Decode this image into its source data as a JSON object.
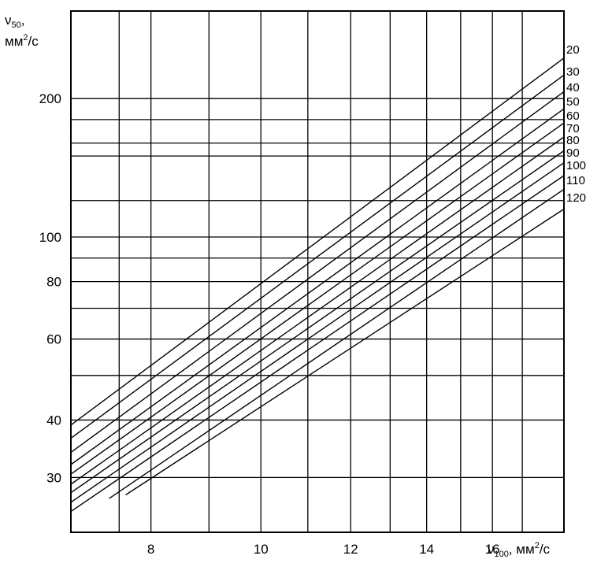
{
  "chart_data": {
    "type": "line",
    "x_scale": "log",
    "y_scale": "log",
    "xlim": [
      6.8,
      18.5
    ],
    "ylim": [
      22.8,
      310
    ],
    "grid": true,
    "x_ticks": [
      8,
      10,
      12,
      14,
      16
    ],
    "y_ticks": [
      30,
      40,
      60,
      80,
      100,
      200
    ],
    "x_gridlines": [
      6.8,
      7.5,
      8,
      9,
      10,
      11,
      12,
      13,
      14,
      15,
      16,
      17,
      18.5
    ],
    "y_gridlines": [
      30,
      40,
      50,
      60,
      70,
      80,
      90,
      100,
      120,
      150,
      160,
      180,
      200,
      310
    ],
    "xlabel": {
      "main": "ν",
      "sub": "100",
      "unit": ", мм",
      "sup": "2",
      "tail": "/с"
    },
    "ylabel": {
      "main": "ν",
      "sub": "50",
      "sep": ",",
      "unit": "мм",
      "sup": "2",
      "tail": "/с"
    },
    "series": [
      {
        "name": "20",
        "points": [
          [
            6.8,
            39.0
          ],
          [
            18.5,
            245.0
          ]
        ]
      },
      {
        "name": "30",
        "points": [
          [
            6.8,
            36.5
          ],
          [
            18.5,
            225.0
          ]
        ]
      },
      {
        "name": "40",
        "points": [
          [
            6.8,
            34.0
          ],
          [
            18.5,
            207.0
          ]
        ]
      },
      {
        "name": "50",
        "points": [
          [
            6.8,
            32.0
          ],
          [
            18.5,
            190.0
          ]
        ]
      },
      {
        "name": "60",
        "points": [
          [
            6.8,
            30.5
          ],
          [
            18.5,
            177.0
          ]
        ]
      },
      {
        "name": "70",
        "points": [
          [
            6.8,
            29.0
          ],
          [
            18.5,
            165.0
          ]
        ]
      },
      {
        "name": "80",
        "points": [
          [
            6.8,
            27.8
          ],
          [
            18.5,
            154.0
          ]
        ]
      },
      {
        "name": "90",
        "points": [
          [
            6.8,
            26.5
          ],
          [
            18.5,
            145.0
          ]
        ]
      },
      {
        "name": "100",
        "points": [
          [
            6.8,
            25.3
          ],
          [
            18.5,
            136.0
          ]
        ]
      },
      {
        "name": "110",
        "points": [
          [
            7.35,
            27.0
          ],
          [
            18.5,
            127.0
          ]
        ]
      },
      {
        "name": "120",
        "points": [
          [
            7.6,
            27.5
          ],
          [
            18.5,
            115.0
          ]
        ]
      }
    ],
    "series_label_y": [
      68,
      96,
      116,
      134,
      152,
      168,
      183,
      199,
      215,
      234,
      256
    ]
  }
}
